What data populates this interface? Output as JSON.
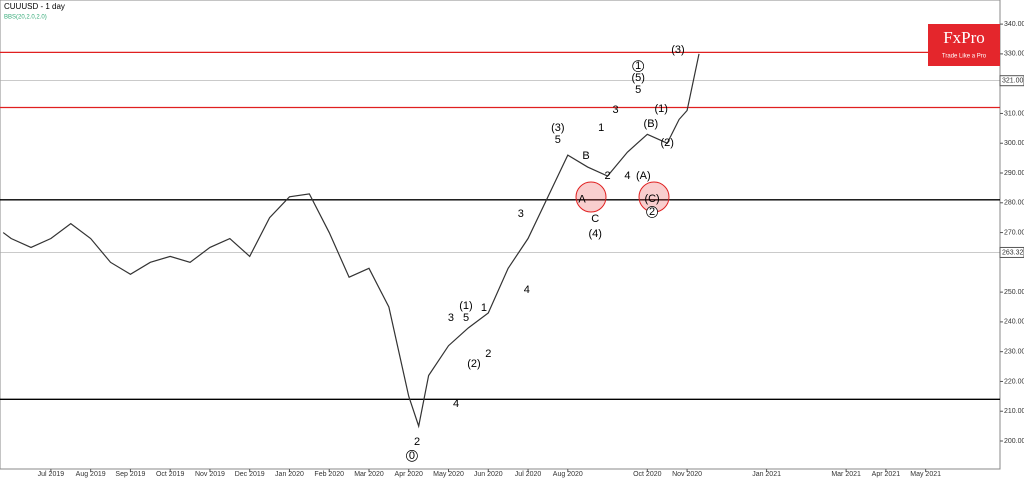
{
  "chart_data": {
    "type": "line",
    "title": "CUUUSD - 1 day",
    "indicator": "BBS(20,2.0,2.0)",
    "logo": {
      "brand": "FxPro",
      "tagline": "Trade Like a Pro"
    },
    "x": [
      -1.2,
      -1,
      -0.5,
      0,
      0.5,
      1,
      1.5,
      2,
      2.5,
      3,
      3.5,
      4,
      4.5,
      5,
      5.5,
      6,
      6.5,
      7,
      7.5,
      8,
      8.5,
      9,
      9.25,
      9.5,
      10,
      10.5,
      11,
      11.5,
      12,
      12.5,
      13,
      13.5,
      14,
      14.5,
      15,
      15.5,
      15.8,
      16,
      16.3
    ],
    "series": [
      {
        "name": "CUUUSD",
        "color": "#333333",
        "values": [
          270,
          268,
          265,
          268,
          273,
          268,
          260,
          256,
          260,
          262,
          260,
          265,
          268,
          262,
          275,
          282,
          283,
          270,
          255,
          258,
          245,
          215,
          205,
          222,
          232,
          238,
          243,
          258,
          268,
          282,
          296,
          292,
          289,
          297,
          303,
          300,
          308,
          311,
          330
        ]
      }
    ],
    "xlim": [
      -1.28,
      23.87
    ],
    "ylim": [
      190.6,
      348.1
    ],
    "xticks": [
      {
        "value": 0,
        "label": "Jul 2019"
      },
      {
        "value": 1,
        "label": "Aug 2019"
      },
      {
        "value": 2,
        "label": "Sep 2019"
      },
      {
        "value": 3,
        "label": "Oct 2019"
      },
      {
        "value": 4,
        "label": "Nov 2019"
      },
      {
        "value": 5,
        "label": "Dec 2019"
      },
      {
        "value": 6,
        "label": "Jan 2020"
      },
      {
        "value": 7,
        "label": "Feb 2020"
      },
      {
        "value": 8,
        "label": "Mar 2020"
      },
      {
        "value": 9,
        "label": "Apr 2020"
      },
      {
        "value": 10,
        "label": "May 2020"
      },
      {
        "value": 11,
        "label": "Jun 2020"
      },
      {
        "value": 12,
        "label": "Jul 2020"
      },
      {
        "value": 13,
        "label": "Aug 2020"
      },
      {
        "value": 15,
        "label": "Oct 2020"
      },
      {
        "value": 16,
        "label": "Nov 2020"
      },
      {
        "value": 18,
        "label": "Jan 2021"
      },
      {
        "value": 20,
        "label": "Mar 2021"
      },
      {
        "value": 21,
        "label": "Apr 2021"
      },
      {
        "value": 22,
        "label": "May 2021"
      }
    ],
    "yticks": [
      {
        "value": 200,
        "label": "200.00"
      },
      {
        "value": 210,
        "label": "210.00"
      },
      {
        "value": 220,
        "label": "220.00"
      },
      {
        "value": 230,
        "label": "230.00"
      },
      {
        "value": 240,
        "label": "240.00"
      },
      {
        "value": 250,
        "label": "250.00"
      },
      {
        "value": 270,
        "label": "270.00"
      },
      {
        "value": 280,
        "label": "280.00"
      },
      {
        "value": 290,
        "label": "290.00"
      },
      {
        "value": 300,
        "label": "300.00"
      },
      {
        "value": 310,
        "label": "310.00"
      },
      {
        "value": 330,
        "label": "330.00"
      },
      {
        "value": 340,
        "label": "340.00"
      }
    ],
    "levels": [
      {
        "value": 330.5,
        "color": "#e02020"
      },
      {
        "value": 312,
        "color": "#e02020"
      },
      {
        "value": 281,
        "color": "#000000"
      },
      {
        "value": 214,
        "color": "#000000"
      }
    ],
    "price_labels": [
      {
        "value": 321.0,
        "label": "321.00"
      },
      {
        "value": 263.32,
        "label": "263.32"
      }
    ],
    "annotations": [
      {
        "text": "(3)",
        "x": 15.77,
        "y": 331.3
      },
      {
        "text": "1",
        "x": 14.77,
        "y": 325.9,
        "circled": true
      },
      {
        "text": "(5)",
        "x": 14.77,
        "y": 321.9
      },
      {
        "text": "5",
        "x": 14.77,
        "y": 317.8
      },
      {
        "text": "(1)",
        "x": 15.35,
        "y": 311.5
      },
      {
        "text": "(B)",
        "x": 15.09,
        "y": 306.4
      },
      {
        "text": "(2)",
        "x": 15.5,
        "y": 300
      },
      {
        "text": "(A)",
        "x": 14.9,
        "y": 289
      },
      {
        "text": "(C)",
        "x": 15.12,
        "y": 281.3
      },
      {
        "text": "2",
        "x": 15.12,
        "y": 276.9,
        "circled": true
      },
      {
        "text": "(3)",
        "x": 12.75,
        "y": 305.1
      },
      {
        "text": "5",
        "x": 12.75,
        "y": 301
      },
      {
        "text": "1",
        "x": 13.84,
        "y": 305.1
      },
      {
        "text": "2",
        "x": 14.0,
        "y": 289
      },
      {
        "text": "3",
        "x": 14.2,
        "y": 311.1
      },
      {
        "text": "4",
        "x": 14.5,
        "y": 289
      },
      {
        "text": "B",
        "x": 13.46,
        "y": 295.7
      },
      {
        "text": "A",
        "x": 13.36,
        "y": 281
      },
      {
        "text": "C",
        "x": 13.69,
        "y": 274.5
      },
      {
        "text": "(4)",
        "x": 13.69,
        "y": 269.5
      },
      {
        "text": "3",
        "x": 11.82,
        "y": 276.2
      },
      {
        "text": "4",
        "x": 11.97,
        "y": 250.7
      },
      {
        "text": "(1)",
        "x": 10.44,
        "y": 245.3
      },
      {
        "text": "5",
        "x": 10.44,
        "y": 241.3
      },
      {
        "text": "1",
        "x": 10.89,
        "y": 244.7
      },
      {
        "text": "3",
        "x": 10.06,
        "y": 241.3
      },
      {
        "text": "2",
        "x": 11.0,
        "y": 229.2
      },
      {
        "text": "(2)",
        "x": 10.64,
        "y": 225.9
      },
      {
        "text": "4",
        "x": 10.19,
        "y": 212.4
      },
      {
        "text": "2",
        "x": 9.21,
        "y": 199.7
      },
      {
        "text": "0",
        "x": 9.08,
        "y": 195,
        "circled": true
      }
    ]
  }
}
